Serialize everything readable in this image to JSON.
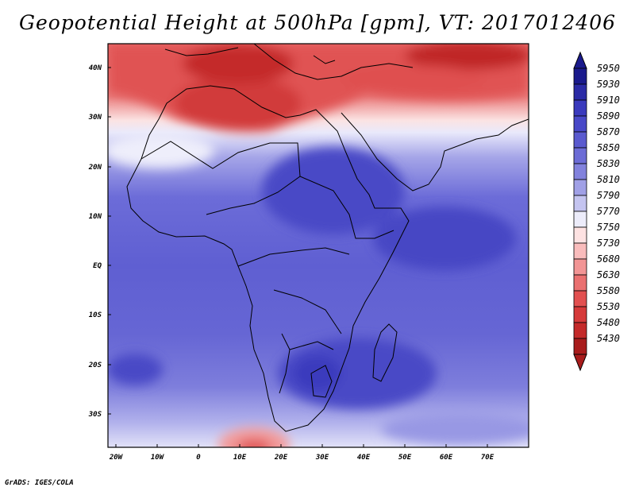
{
  "title": "Geopotential Height at 500hPa [gpm], VT: 2017012406",
  "credit": "GrADS: IGES/COLA",
  "axes": {
    "lat_labels": [
      "40N",
      "30N",
      "20N",
      "10N",
      "EQ",
      "10S",
      "20S",
      "30S"
    ],
    "lon_labels": [
      "20W",
      "10W",
      "0",
      "10E",
      "20E",
      "30E",
      "40E",
      "50E",
      "60E",
      "70E"
    ],
    "lon_range": [
      -25,
      80
    ],
    "lat_range": [
      -36,
      45
    ]
  },
  "colorbar": {
    "labels": [
      "5950",
      "5930",
      "5910",
      "5890",
      "5870",
      "5850",
      "5830",
      "5810",
      "5790",
      "5770",
      "5750",
      "5730",
      "5680",
      "5630",
      "5580",
      "5530",
      "5480",
      "5430"
    ],
    "colors": [
      "#1a1a8c",
      "#2b2ba6",
      "#3a3abd",
      "#4848c8",
      "#5a5acf",
      "#6c6cd6",
      "#8282dd",
      "#a0a0e6",
      "#c4c4f0",
      "#ececfa",
      "#fde2e2",
      "#f9bcbc",
      "#f29595",
      "#ea7070",
      "#e25050",
      "#d63a3a",
      "#c42a2a",
      "#a81c1c"
    ]
  }
}
